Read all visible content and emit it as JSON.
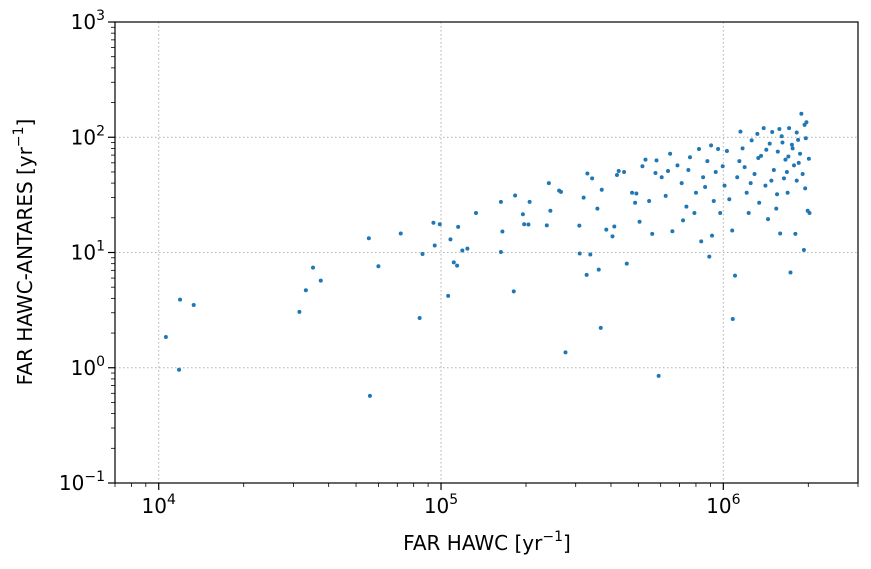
{
  "chart_data": {
    "type": "scatter",
    "xscale": "log",
    "yscale": "log",
    "xlabel_text": "FAR HAWC [yr",
    "xlabel_sup": "−1",
    "xlabel_close": "]",
    "ylabel_text": "FAR HAWC-ANTARES [yr",
    "ylabel_sup": "−1",
    "ylabel_close": "]",
    "xlim": [
      7000,
      3000000
    ],
    "ylim": [
      0.1,
      1000
    ],
    "xticks": [
      {
        "value": 10000,
        "base": "10",
        "exp": "4"
      },
      {
        "value": 100000,
        "base": "10",
        "exp": "5"
      },
      {
        "value": 1000000,
        "base": "10",
        "exp": "6"
      }
    ],
    "yticks": [
      {
        "value": 0.1,
        "base": "10",
        "exp": "−1"
      },
      {
        "value": 1,
        "base": "10",
        "exp": "0"
      },
      {
        "value": 10,
        "base": "10",
        "exp": "1"
      },
      {
        "value": 100,
        "base": "10",
        "exp": "2"
      },
      {
        "value": 1000,
        "base": "10",
        "exp": "3"
      }
    ],
    "grid": true,
    "marker_color": "#1f77b4",
    "series": [
      {
        "points": [
          [
            10600,
            1.85
          ],
          [
            11800,
            0.96
          ],
          [
            11900,
            3.9
          ],
          [
            13300,
            3.5
          ],
          [
            31500,
            3.05
          ],
          [
            33200,
            4.7
          ],
          [
            35200,
            7.4
          ],
          [
            37500,
            5.7
          ],
          [
            55500,
            13.3
          ],
          [
            56000,
            0.57
          ],
          [
            60000,
            7.6
          ],
          [
            72000,
            14.6
          ],
          [
            84000,
            2.7
          ],
          [
            86000,
            9.7
          ],
          [
            94000,
            18.1
          ],
          [
            95000,
            11.5
          ],
          [
            99000,
            17.6
          ],
          [
            106000,
            4.2
          ],
          [
            108000,
            13.0
          ],
          [
            111000,
            8.2
          ],
          [
            114000,
            7.7
          ],
          [
            115000,
            16.7
          ],
          [
            119000,
            10.4
          ],
          [
            124000,
            10.8
          ],
          [
            133000,
            22.0
          ],
          [
            163000,
            27.5
          ],
          [
            165000,
            15.2
          ],
          [
            163000,
            10.1
          ],
          [
            181000,
            4.6
          ],
          [
            183000,
            31.2
          ],
          [
            195000,
            21.5
          ],
          [
            197000,
            17.6
          ],
          [
            204000,
            17.5
          ],
          [
            206000,
            27.5
          ],
          [
            237000,
            17.2
          ],
          [
            241000,
            40.0
          ],
          [
            244000,
            23.0
          ],
          [
            262000,
            34.4
          ],
          [
            266000,
            33.6
          ],
          [
            276000,
            1.36
          ],
          [
            309000,
            17.1
          ],
          [
            310000,
            9.8
          ],
          [
            320000,
            29.9
          ],
          [
            328000,
            6.4
          ],
          [
            330000,
            48.5
          ],
          [
            338000,
            9.6
          ],
          [
            343000,
            44.0
          ],
          [
            358000,
            24.0
          ],
          [
            362000,
            7.1
          ],
          [
            368000,
            2.22
          ],
          [
            371000,
            35.0
          ],
          [
            385000,
            15.8
          ],
          [
            405000,
            13.8
          ],
          [
            411000,
            16.8
          ],
          [
            420000,
            47.0
          ],
          [
            426000,
            51.0
          ],
          [
            445000,
            50.0
          ],
          [
            455000,
            8.0
          ],
          [
            475000,
            33.0
          ],
          [
            487000,
            27.0
          ],
          [
            492000,
            32.5
          ],
          [
            505000,
            18.5
          ],
          [
            517000,
            56.0
          ],
          [
            530000,
            64.0
          ],
          [
            546000,
            28.0
          ],
          [
            560000,
            14.5
          ],
          [
            575000,
            49.0
          ],
          [
            580000,
            63.0
          ],
          [
            590000,
            0.85
          ],
          [
            605000,
            45.0
          ],
          [
            625000,
            31.0
          ],
          [
            637000,
            51.0
          ],
          [
            648000,
            72.0
          ],
          [
            660000,
            15.3
          ],
          [
            688000,
            57.0
          ],
          [
            712000,
            40.0
          ],
          [
            720000,
            19.0
          ],
          [
            740000,
            25.0
          ],
          [
            752000,
            52.0
          ],
          [
            762000,
            67.0
          ],
          [
            790000,
            22.0
          ],
          [
            800000,
            33.0
          ],
          [
            820000,
            79.0
          ],
          [
            835000,
            12.5
          ],
          [
            848000,
            45.0
          ],
          [
            862000,
            37.0
          ],
          [
            878000,
            62.0
          ],
          [
            892000,
            9.2
          ],
          [
            905000,
            85.0
          ],
          [
            912000,
            14.0
          ],
          [
            925000,
            28.0
          ],
          [
            940000,
            50.0
          ],
          [
            958000,
            79.0
          ],
          [
            975000,
            22.0
          ],
          [
            995000,
            56.0
          ],
          [
            1010000,
            38.0
          ],
          [
            1030000,
            76.0
          ],
          [
            1050000,
            29.0
          ],
          [
            1075000,
            15.5
          ],
          [
            1080000,
            2.65
          ],
          [
            1100000,
            6.3
          ],
          [
            1120000,
            45.0
          ],
          [
            1150000,
            112.0
          ],
          [
            1170000,
            80.0
          ],
          [
            1190000,
            55.0
          ],
          [
            1210000,
            33.0
          ],
          [
            1230000,
            22.0
          ],
          [
            1260000,
            94.0
          ],
          [
            1290000,
            48.0
          ],
          [
            1320000,
            107.0
          ],
          [
            1340000,
            27.0
          ],
          [
            1360000,
            69.0
          ],
          [
            1390000,
            120.0
          ],
          [
            1410000,
            38.0
          ],
          [
            1440000,
            19.5
          ],
          [
            1460000,
            88.0
          ],
          [
            1490000,
            111.0
          ],
          [
            1510000,
            52.0
          ],
          [
            1540000,
            24.0
          ],
          [
            1560000,
            75.0
          ],
          [
            1590000,
            14.6
          ],
          [
            1610000,
            102.0
          ],
          [
            1640000,
            44.0
          ],
          [
            1660000,
            64.0
          ],
          [
            1690000,
            33.0
          ],
          [
            1710000,
            120.0
          ],
          [
            1730000,
            6.7
          ],
          [
            1750000,
            86.0
          ],
          [
            1780000,
            57.0
          ],
          [
            1800000,
            14.5
          ],
          [
            1820000,
            42.0
          ],
          [
            1840000,
            95.0
          ],
          [
            1870000,
            72.0
          ],
          [
            1890000,
            160.0
          ],
          [
            1910000,
            48.0
          ],
          [
            1930000,
            10.5
          ],
          [
            1950000,
            36.0
          ],
          [
            1970000,
            135.0
          ],
          [
            1990000,
            23.0
          ],
          [
            2010000,
            65.0
          ],
          [
            2020000,
            22.0
          ],
          [
            1140000,
            62.0
          ],
          [
            1330000,
            66.0
          ],
          [
            1480000,
            42.0
          ],
          [
            1620000,
            90.0
          ],
          [
            1760000,
            80.0
          ],
          [
            1850000,
            60.0
          ],
          [
            1960000,
            98.0
          ],
          [
            1550000,
            32.0
          ],
          [
            1680000,
            50.0
          ],
          [
            1820000,
            110.0
          ],
          [
            1420000,
            78.0
          ],
          [
            1250000,
            40.0
          ],
          [
            1940000,
            128.0
          ],
          [
            1700000,
            68.0
          ],
          [
            1580000,
            118.0
          ]
        ]
      }
    ]
  }
}
